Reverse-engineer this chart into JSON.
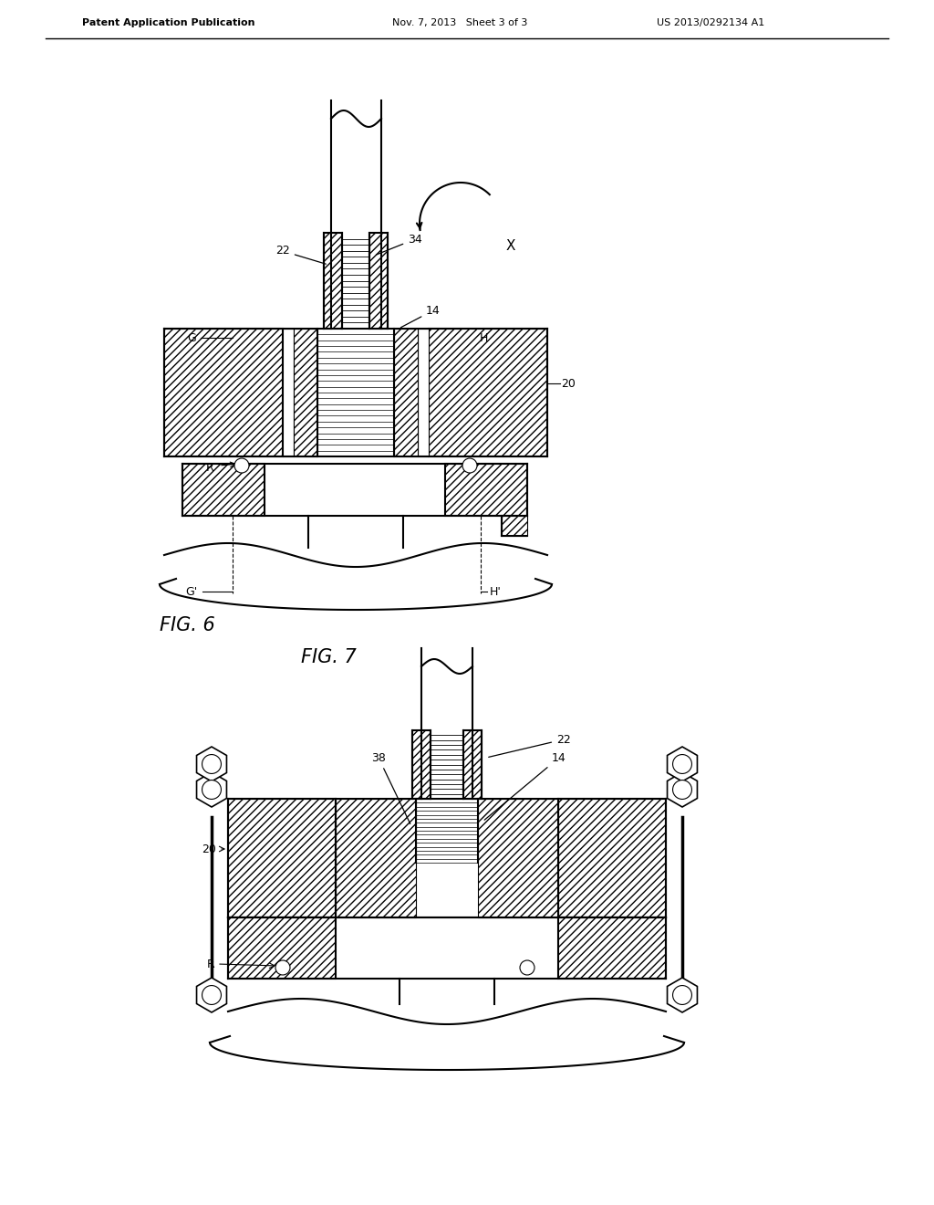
{
  "bg_color": "#ffffff",
  "line_color": "#000000",
  "header_left": "Patent Application Publication",
  "header_mid": "Nov. 7, 2013   Sheet 3 of 3",
  "header_right": "US 2013/0292134 A1",
  "fig6_label": "FIG. 6",
  "fig7_label": "FIG. 7"
}
